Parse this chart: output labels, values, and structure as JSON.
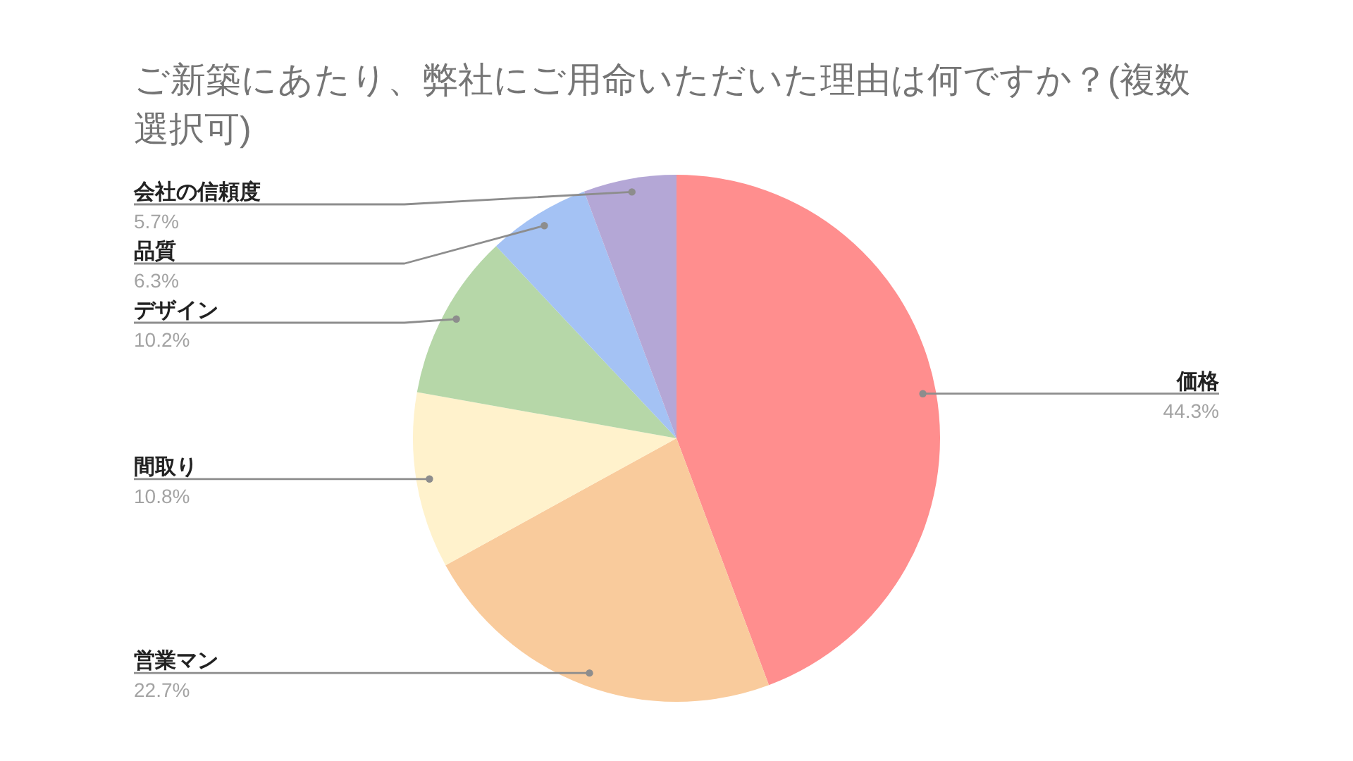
{
  "chart_data": {
    "type": "pie",
    "title": "ご新築にあたり、弊社にご用命いただいた理由は何ですか？(複数選択可)",
    "categories": [
      "価格",
      "営業マン",
      "間取り",
      "デザイン",
      "品質",
      "会社の信頼度"
    ],
    "values": [
      44.3,
      22.7,
      10.8,
      10.2,
      6.3,
      5.7
    ],
    "colors": [
      "#ff8e8e",
      "#f9cb9c",
      "#fff2cc",
      "#b6d7a8",
      "#a4c2f4",
      "#b4a7d6"
    ],
    "value_labels": [
      "44.3%",
      "22.7%",
      "10.8%",
      "10.2%",
      "6.3%",
      "5.7%"
    ]
  }
}
